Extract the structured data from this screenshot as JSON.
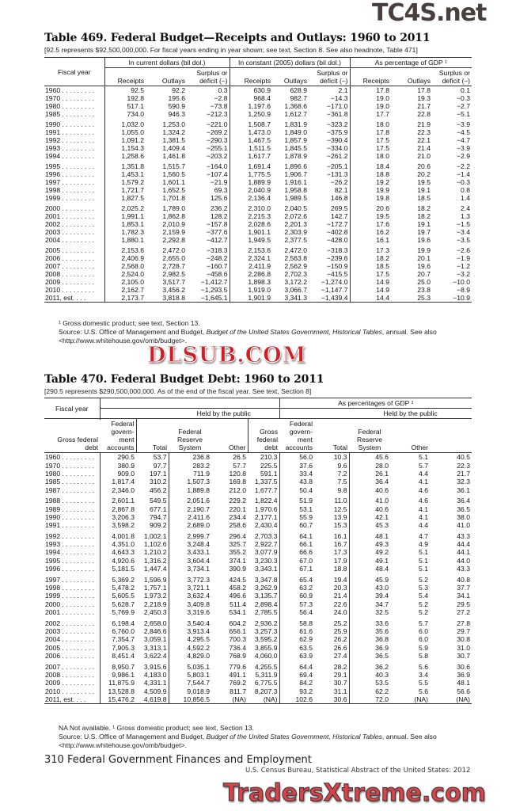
{
  "watermarks": {
    "top": "TC4S.net",
    "middle": "DLSUB.COM",
    "bottom": "TradersXtreme.com"
  },
  "table469": {
    "title": "Table 469. Federal Budget—Receipts and Outlays: 1960 to 2011",
    "headnote": "[92.5 represents $92,500,000,000. For fiscal years ending in year shown; see text, Section 8. See also headnote, Table 471]",
    "stub_header": "Fiscal year",
    "groups": [
      "In current dollars (bil dol.)",
      "In constant (2005) dollars (bil dol.)",
      "As percentage of GDP ¹"
    ],
    "columns": [
      "Receipts",
      "Outlays",
      "Surplus or deficit (–)"
    ],
    "rows": [
      [
        "1960",
        "92.5",
        "92.2",
        "0.3",
        "630.9",
        "628.9",
        "2.1",
        "17.8",
        "17.8",
        "0.1"
      ],
      [
        "1970",
        "192.8",
        "195.6",
        "−2.8",
        "968.4",
        "982.7",
        "−14.3",
        "19.0",
        "19.3",
        "−0.3"
      ],
      [
        "1980",
        "517.1",
        "590.9",
        "−73.8",
        "1,197.6",
        "1,368.6",
        "−171.0",
        "19.0",
        "21.7",
        "−2.7"
      ],
      [
        "1985",
        "734.0",
        "946.3",
        "−212.3",
        "1,250.9",
        "1,612.7",
        "−361.8",
        "17.7",
        "22.8",
        "−5.1"
      ],
      [
        "1990",
        "1,032.0",
        "1,253.0",
        "−221.0",
        "1,508.7",
        "1,831.9",
        "−323.2",
        "18.0",
        "21.9",
        "−3.9"
      ],
      [
        "1991",
        "1,055.0",
        "1,324.2",
        "−269.2",
        "1,473.0",
        "1,849.0",
        "−375.9",
        "17.8",
        "22.3",
        "−4.5"
      ],
      [
        "1992",
        "1,091.2",
        "1,381.5",
        "−290.3",
        "1,467.5",
        "1,857.9",
        "−390.4",
        "17.5",
        "22.1",
        "−4.7"
      ],
      [
        "1993",
        "1,154.3",
        "1,409.4",
        "−255.1",
        "1,511.5",
        "1,845.5",
        "−334.0",
        "17.5",
        "21.4",
        "−3.9"
      ],
      [
        "1994",
        "1,258.6",
        "1,461.8",
        "−203.2",
        "1,617.7",
        "1,878.9",
        "−261.2",
        "18.0",
        "21.0",
        "−2.9"
      ],
      [
        "1995",
        "1,351.8",
        "1,515.7",
        "−164.0",
        "1,691.4",
        "1,896.6",
        "−205.1",
        "18.4",
        "20.6",
        "−2.2"
      ],
      [
        "1996",
        "1,453.1",
        "1,560.5",
        "−107.4",
        "1,775.5",
        "1,906.7",
        "−131.3",
        "18.8",
        "20.2",
        "−1.4"
      ],
      [
        "1997",
        "1,579.2",
        "1,601.1",
        "−21.9",
        "1,889.9",
        "1,916.1",
        "−26.2",
        "19.2",
        "19.5",
        "−0.3"
      ],
      [
        "1998",
        "1,721.7",
        "1,652.5",
        "69.3",
        "2,040.9",
        "1,958.8",
        "82.1",
        "19.9",
        "19.1",
        "0.8"
      ],
      [
        "1999",
        "1,827.5",
        "1,701.8",
        "125.6",
        "2,136.4",
        "1,989.5",
        "146.8",
        "19.8",
        "18.5",
        "1.4"
      ],
      [
        "2000",
        "2,025.2",
        "1,789.0",
        "236.2",
        "2,310.0",
        "2,040.5",
        "269.5",
        "20.6",
        "18.2",
        "2.4"
      ],
      [
        "2001",
        "1,991.1",
        "1,862.8",
        "128.2",
        "2,215.3",
        "2,072.6",
        "142.7",
        "19.5",
        "18.2",
        "1.3"
      ],
      [
        "2002",
        "1,853.1",
        "2,010.9",
        "−157.8",
        "2,028.6",
        "2,201.3",
        "−172.7",
        "17.6",
        "19.1",
        "−1.5"
      ],
      [
        "2003",
        "1,782.3",
        "2,159.9",
        "−377.6",
        "1,901.1",
        "2,303.9",
        "−402.8",
        "16.2",
        "19.7",
        "−3.4"
      ],
      [
        "2004",
        "1,880.1",
        "2,292.8",
        "−412.7",
        "1,949.5",
        "2,377.5",
        "−428.0",
        "16.1",
        "19.6",
        "−3.5"
      ],
      [
        "2005",
        "2,153.6",
        "2,472.0",
        "−318.3",
        "2,153.6",
        "2,472.0",
        "−318.3",
        "17.3",
        "19.9",
        "−2.6"
      ],
      [
        "2006",
        "2,406.9",
        "2,655.0",
        "−248.2",
        "2,324.1",
        "2,563.8",
        "−239.6",
        "18.2",
        "20.1",
        "−1.9"
      ],
      [
        "2007",
        "2,568.0",
        "2,728.7",
        "−160.7",
        "2,411.9",
        "2,562.9",
        "−150.9",
        "18.5",
        "19.6",
        "−1.2"
      ],
      [
        "2008",
        "2,524.0",
        "2,982.5",
        "−458.6",
        "2,286.8",
        "2,702.3",
        "−415.5",
        "17.5",
        "20.7",
        "−3.2"
      ],
      [
        "2009",
        "2,105.0",
        "3,517.7",
        "−1,412.7",
        "1,898.3",
        "3,172.2",
        "−1,274.0",
        "14.9",
        "25.0",
        "−10.0"
      ],
      [
        "2010",
        "2,162.7",
        "3,456.2",
        "−1,293.5",
        "1,919.0",
        "3,066.7",
        "−1,147.7",
        "14.9",
        "23.8",
        "−8.9"
      ],
      [
        "2011, est.",
        "2,173.7",
        "3,818.8",
        "−1,645.1",
        "1,901.9",
        "3,341.3",
        "−1,439.4",
        "14.4",
        "25.3",
        "−10.9"
      ]
    ],
    "footnote": "¹ Gross domestic product; see text, Section 13.",
    "source_prefix": "Source: U.S. Office of Management and Budget, ",
    "source_title": "Budget of the United States Government, Historical Tables",
    "source_suffix": ", annual. See also <http://www.whitehouse.gov/omb/budget>."
  },
  "table470": {
    "title": "Table 470. Federal Budget Debt: 1960 to 2011",
    "headnote": "[290.5 represents $290,500,000,000. As of the end of the fiscal year. See text, Section 8]",
    "stub_header": "Fiscal year",
    "group_right": "As percentages of GDP ¹",
    "held_by_public": "Held by the public",
    "columns": [
      "Gross federal debt",
      "Federal govern-ment accounts",
      "Total",
      "Federal Reserve System",
      "Other"
    ],
    "rows": [
      [
        "1960",
        "290.5",
        "53.7",
        "236.8",
        "26.5",
        "210.3",
        "56.0",
        "10.3",
        "45.6",
        "5.1",
        "40.5"
      ],
      [
        "1970",
        "380.9",
        "97.7",
        "283.2",
        "57.7",
        "225.5",
        "37.6",
        "9.6",
        "28.0",
        "5.7",
        "22.3"
      ],
      [
        "1980",
        "909.0",
        "197.1",
        "711.9",
        "120.8",
        "591.1",
        "33.4",
        "7.2",
        "26.1",
        "4.4",
        "21.7"
      ],
      [
        "1985",
        "1,817.4",
        "310.2",
        "1,507.3",
        "169.8",
        "1,337.5",
        "43.8",
        "7.5",
        "36.4",
        "4.1",
        "32.3"
      ],
      [
        "1987",
        "2,346.0",
        "456.2",
        "1,889.8",
        "212.0",
        "1,677.7",
        "50.4",
        "9.8",
        "40.6",
        "4.6",
        "36.1"
      ],
      [
        "1988",
        "2,601.1",
        "549.5",
        "2,051.6",
        "229.2",
        "1,822.4",
        "51.9",
        "11.0",
        "41.0",
        "4.6",
        "36.4"
      ],
      [
        "1989",
        "2,867.8",
        "677.1",
        "2,190.7",
        "220.1",
        "1,970.6",
        "53.1",
        "12.5",
        "40.6",
        "4.1",
        "36.5"
      ],
      [
        "1990",
        "3,206.3",
        "794.7",
        "2,411.6",
        "234.4",
        "2,177.1",
        "55.9",
        "13.9",
        "42.1",
        "4.1",
        "38.0"
      ],
      [
        "1991",
        "3,598.2",
        "909.2",
        "2,689.0",
        "258.6",
        "2,430.4",
        "60.7",
        "15.3",
        "45.3",
        "4.4",
        "41.0"
      ],
      [
        "1992",
        "4,001.8",
        "1,002.1",
        "2,999.7",
        "296.4",
        "2,703.3",
        "64.1",
        "16.1",
        "48.1",
        "4.7",
        "43.3"
      ],
      [
        "1993",
        "4,351.0",
        "1,102.6",
        "3,248.4",
        "325.7",
        "2,922.7",
        "66.1",
        "16.7",
        "49.3",
        "4.9",
        "44.4"
      ],
      [
        "1994",
        "4,643.3",
        "1,210.2",
        "3,433.1",
        "355.2",
        "3,077.9",
        "66.6",
        "17.3",
        "49.2",
        "5.1",
        "44.1"
      ],
      [
        "1995",
        "4,920.6",
        "1,316.2",
        "3,604.4",
        "374.1",
        "3,230.3",
        "67.0",
        "17.9",
        "49.1",
        "5.1",
        "44.0"
      ],
      [
        "1996",
        "5,181.5",
        "1,447.4",
        "3,734.1",
        "390.9",
        "3,343.1",
        "67.1",
        "18.8",
        "48.4",
        "5.1",
        "43.3"
      ],
      [
        "1997",
        "5,369.2",
        "1,596.9",
        "3,772.3",
        "424.5",
        "3,347.8",
        "65.4",
        "19.4",
        "45.9",
        "5.2",
        "40.8"
      ],
      [
        "1998",
        "5,478.2",
        "1,757.1",
        "3,721.1",
        "458.2",
        "3,262.9",
        "63.2",
        "20.3",
        "43.0",
        "5.3",
        "37.7"
      ],
      [
        "1999",
        "5,605.5",
        "1,973.2",
        "3,632.4",
        "496.6",
        "3,135.7",
        "60.9",
        "21.4",
        "39.4",
        "5.4",
        "34.1"
      ],
      [
        "2000",
        "5,628.7",
        "2,218.9",
        "3,409.8",
        "511.4",
        "2,898.4",
        "57.3",
        "22.6",
        "34.7",
        "5.2",
        "29.5"
      ],
      [
        "2001",
        "5,769.9",
        "2,450.3",
        "3,319.6",
        "534.1",
        "2,785.5",
        "56.4",
        "24.0",
        "32.5",
        "5.2",
        "27.2"
      ],
      [
        "2002",
        "6,198.4",
        "2,658.0",
        "3,540.4",
        "604.2",
        "2,936.2",
        "58.8",
        "25.2",
        "33.6",
        "5.7",
        "27.8"
      ],
      [
        "2003",
        "6,760.0",
        "2,846.6",
        "3,913.4",
        "656.1",
        "3,257.3",
        "61.6",
        "25.9",
        "35.6",
        "6.0",
        "29.7"
      ],
      [
        "2004",
        "7,354.7",
        "3,059.1",
        "4,295.5",
        "700.3",
        "3,595.2",
        "62.9",
        "26.2",
        "36.8",
        "6.0",
        "30.8"
      ],
      [
        "2005",
        "7,905.3",
        "3,313.1",
        "4,592.2",
        "736.4",
        "3,855.9",
        "63.5",
        "26.6",
        "36.9",
        "5.9",
        "31.0"
      ],
      [
        "2006",
        "8,451.4",
        "3,622.4",
        "4,829.0",
        "768.9",
        "4,060.0",
        "63.9",
        "27.4",
        "36.5",
        "5.8",
        "30.7"
      ],
      [
        "2007",
        "8,950.7",
        "3,915.6",
        "5,035.1",
        "779.6",
        "4,255.5",
        "64.4",
        "28.2",
        "36.2",
        "5.6",
        "30.6"
      ],
      [
        "2008",
        "9,986.1",
        "4,183.0",
        "5,803.1",
        "491.1",
        "5,311.9",
        "69.4",
        "29.1",
        "40.3",
        "3.4",
        "36.9"
      ],
      [
        "2009",
        "11,875.9",
        "4,331.1",
        "7,544.7",
        "769.2",
        "6,775.5",
        "84.2",
        "30.7",
        "53.5",
        "5.5",
        "48.1"
      ],
      [
        "2010",
        "13,528.8",
        "4,509.9",
        "9,018.9",
        "811.7",
        "8,207.3",
        "93.2",
        "31.1",
        "62.2",
        "5.6",
        "56.6"
      ],
      [
        "2011, est.",
        "15,476.2",
        "4,619.8",
        "10,856.5",
        "(NA)",
        "(NA)",
        "102.6",
        "30.6",
        "72.0",
        "(NA)",
        "(NA)"
      ]
    ],
    "footnote": "NA Not available. ¹ Gross domestic product; see text, Section 13.",
    "source_prefix": "Source: U.S. Office of Management and Budget, ",
    "source_title": "Budget of the United States Government, Historical Tables",
    "source_suffix": ", annual. See also <http://www.whitehouse.gov/omb/budget>."
  },
  "footer": {
    "page_line": "310  Federal Government Finances and Employment",
    "credit": "U.S. Census Bureau, Statistical Abstract of the United States: 2012"
  }
}
